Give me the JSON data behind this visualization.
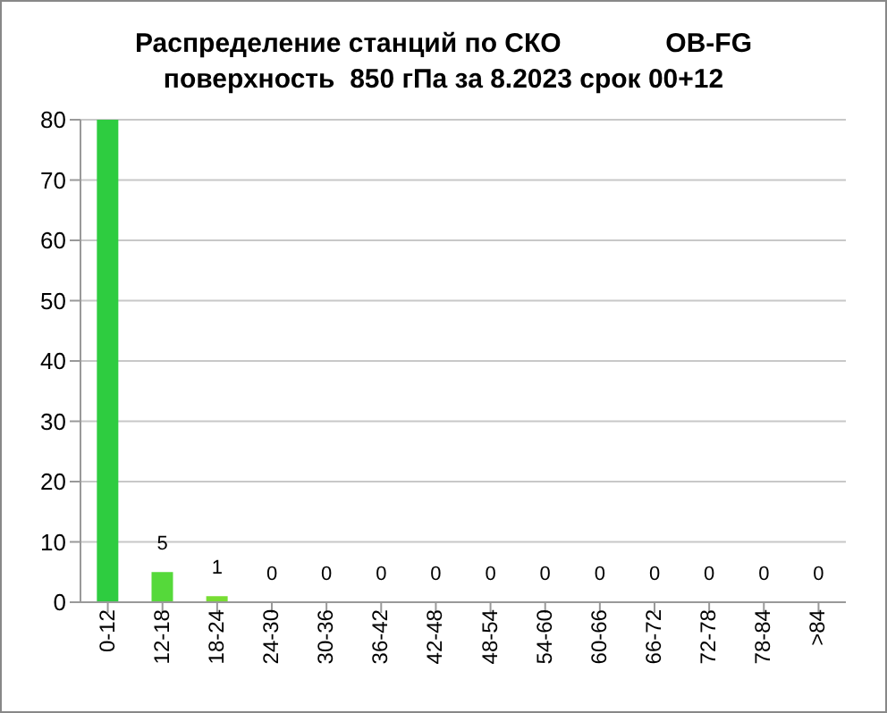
{
  "chart_data": {
    "type": "bar",
    "title": "Распределение станций по СКО              OB-FG",
    "subtitle": "поверхность  850 гПа за 8.2023 срок 00+12",
    "categories": [
      "0-12",
      "12-18",
      "18-24",
      "24-30",
      "30-36",
      "36-42",
      "42-48",
      "48-54",
      "54-60",
      "60-66",
      "66-72",
      "72-78",
      "78-84",
      ">84"
    ],
    "values": [
      80,
      5,
      1,
      0,
      0,
      0,
      0,
      0,
      0,
      0,
      0,
      0,
      0,
      0
    ],
    "value_labels": [
      null,
      "5",
      "1",
      "0",
      "0",
      "0",
      "0",
      "0",
      "0",
      "0",
      "0",
      "0",
      "0",
      "0"
    ],
    "colors": [
      "#2ecc40",
      "#55d93a",
      "#77dd33",
      "#77dd33",
      "#77dd33",
      "#77dd33",
      "#77dd33",
      "#77dd33",
      "#77dd33",
      "#77dd33",
      "#77dd33",
      "#77dd33",
      "#77dd33",
      "#77dd33"
    ],
    "ylim": [
      0,
      80
    ],
    "yticks": [
      0,
      10,
      20,
      30,
      40,
      50,
      60,
      70,
      80
    ],
    "grid": "y"
  }
}
